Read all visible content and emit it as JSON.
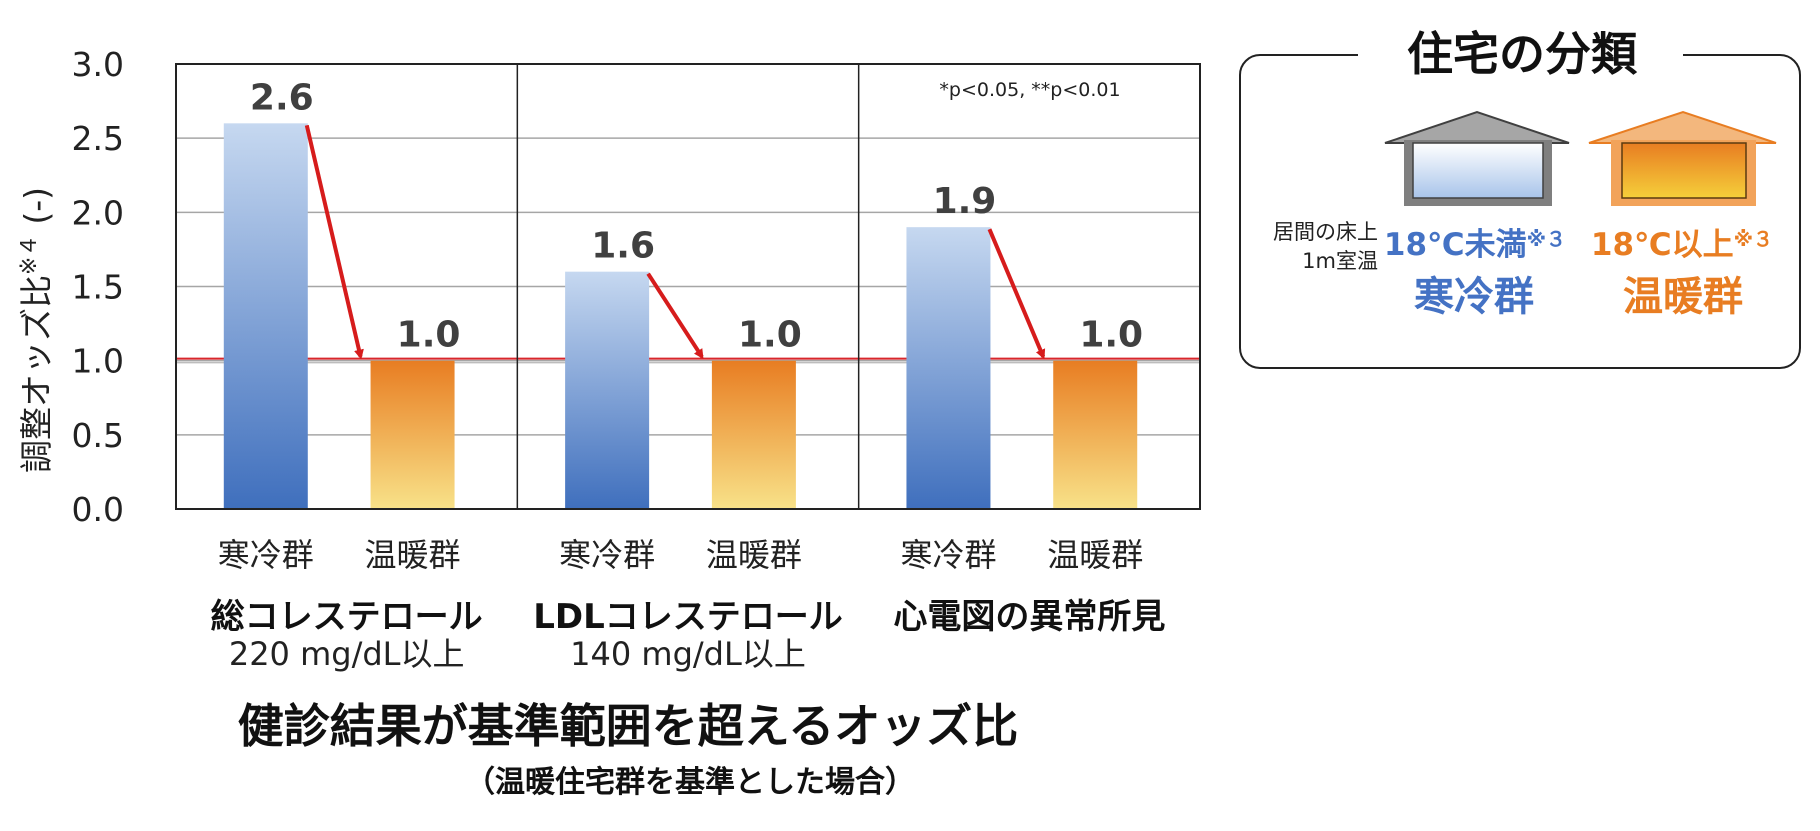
{
  "chart_data": {
    "type": "bar",
    "ylabel": "調整オッズ比",
    "ylabel_note": "※４",
    "ylabel_unit": "(-)",
    "ylim": [
      0,
      3.0
    ],
    "yticks": [
      "0.0",
      "0.5",
      "1.0",
      "1.5",
      "2.0",
      "2.5",
      "3.0"
    ],
    "grid": true,
    "reference_line": 1.0,
    "significance_note": "*p<0.05, **p<0.01",
    "groups": [
      {
        "title": "総コレステロール",
        "subtitle": "220 mg/dL以上",
        "bars": [
          {
            "category": "寒冷群",
            "value": 2.6,
            "label": "2.6"
          },
          {
            "category": "温暖群",
            "value": 1.0,
            "label": "1.0"
          }
        ]
      },
      {
        "title": "LDLコレステロール",
        "subtitle": "140 mg/dL以上",
        "bars": [
          {
            "category": "寒冷群",
            "value": 1.6,
            "label": "1.6"
          },
          {
            "category": "温暖群",
            "value": 1.0,
            "label": "1.0"
          }
        ]
      },
      {
        "title": "心電図の異常所見",
        "subtitle": "",
        "bars": [
          {
            "category": "寒冷群",
            "value": 1.9,
            "label": "1.9"
          },
          {
            "category": "温暖群",
            "value": 1.0,
            "label": "1.0"
          }
        ]
      }
    ],
    "title": "健診結果が基準範囲を超えるオッズ比",
    "subtitle": "（温暖住宅群を基準とした場合）",
    "colors": {
      "cold_top": "#c6d8f0",
      "cold_bottom": "#3f6fbd",
      "warm_top": "#e87d22",
      "warm_bottom": "#f8e289",
      "arrow": "#d61c1c",
      "ref_line": "#d9262b",
      "grid": "#a6a6a6"
    }
  },
  "legend": {
    "title": "住宅の分類",
    "row_label_line1": "居間の床上",
    "row_label_line2": "1m室温",
    "cold": {
      "temp": "18℃未満",
      "note": "※３",
      "name": "寒冷群",
      "color": "#4472c4"
    },
    "warm": {
      "temp": "18℃以上",
      "note": "※３",
      "name": "温暖群",
      "color": "#e87d22"
    }
  }
}
